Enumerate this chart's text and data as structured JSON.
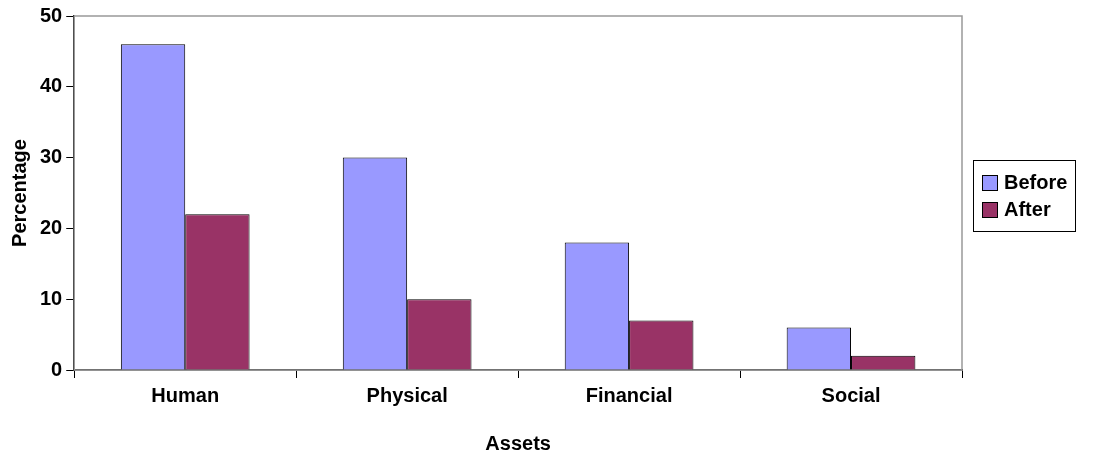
{
  "chart_data": {
    "type": "bar",
    "categories": [
      "Human",
      "Physical",
      "Financial",
      "Social"
    ],
    "series": [
      {
        "name": "Before",
        "color": "#9999ff",
        "values": [
          46,
          30,
          18,
          6
        ]
      },
      {
        "name": "After",
        "color": "#993366",
        "values": [
          22,
          10,
          7,
          2
        ]
      }
    ],
    "ylim": [
      0,
      50
    ],
    "yticks": [
      0,
      10,
      20,
      30,
      40,
      50
    ],
    "xlabel": "Assets",
    "ylabel": "Percentage",
    "legend": "right"
  }
}
